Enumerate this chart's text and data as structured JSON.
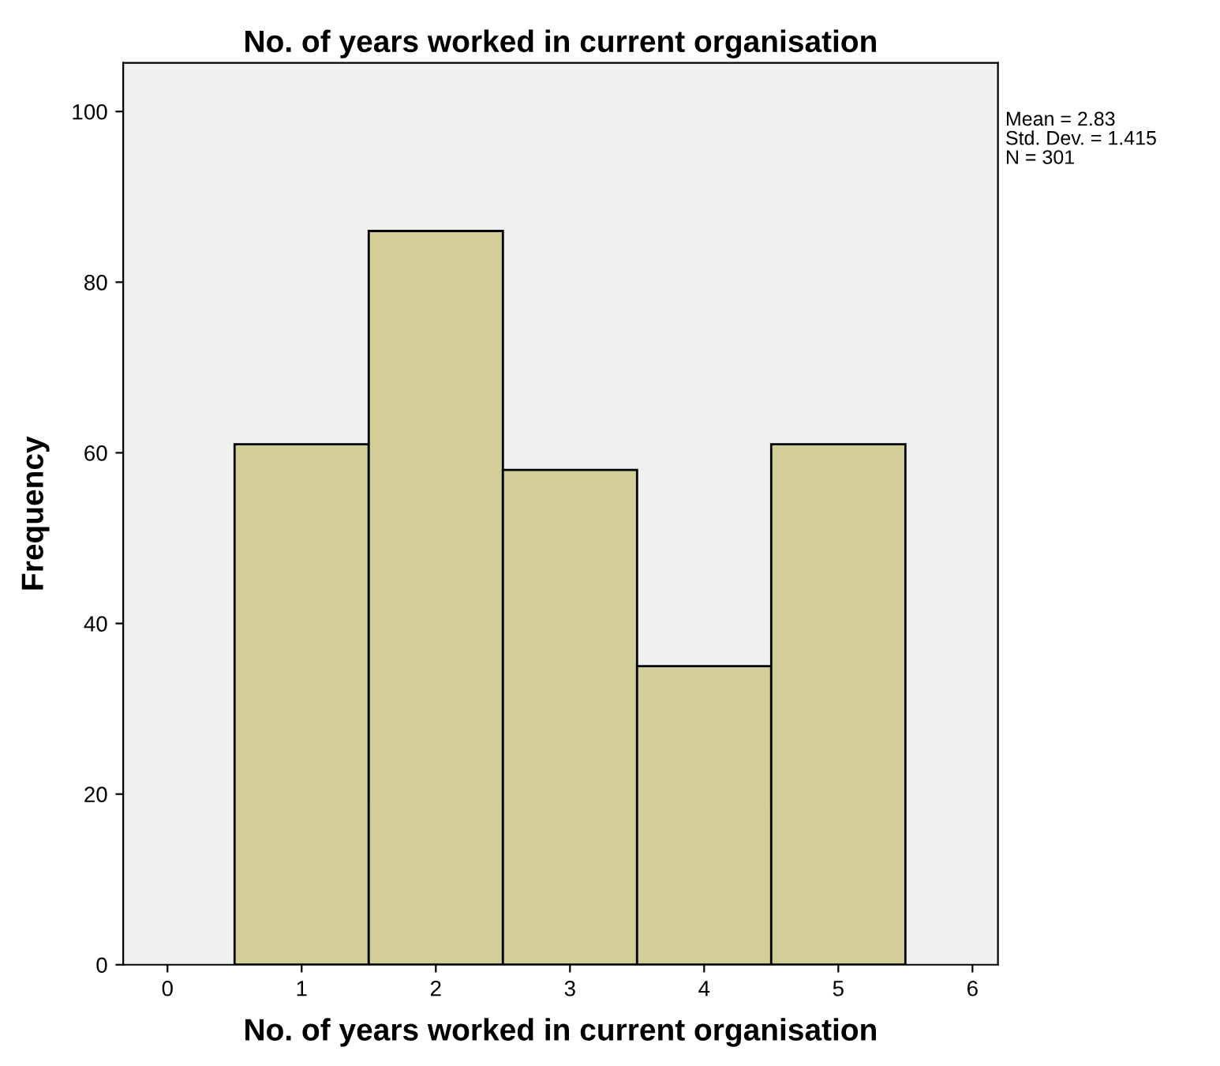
{
  "chart_data": {
    "type": "histogram",
    "title": "No. of years worked in current organisation",
    "xlabel": "No. of years worked in current organisation",
    "ylabel": "Frequency",
    "bins": [
      0.5,
      1.5,
      2.5,
      3.5,
      4.5,
      5.5
    ],
    "values": [
      61,
      86,
      58,
      35,
      61
    ],
    "color": "#d3ce97",
    "xlim": [
      -0.33,
      6.19
    ],
    "ylim": [
      0,
      105.7
    ],
    "xticks": [
      0,
      1,
      2,
      3,
      4,
      5,
      6
    ],
    "yticks": [
      0,
      20,
      40,
      60,
      80,
      100
    ],
    "grid": false,
    "annotations": [
      "Mean = 2.83",
      "Std. Dev. = 1.415",
      "N = 301"
    ]
  }
}
